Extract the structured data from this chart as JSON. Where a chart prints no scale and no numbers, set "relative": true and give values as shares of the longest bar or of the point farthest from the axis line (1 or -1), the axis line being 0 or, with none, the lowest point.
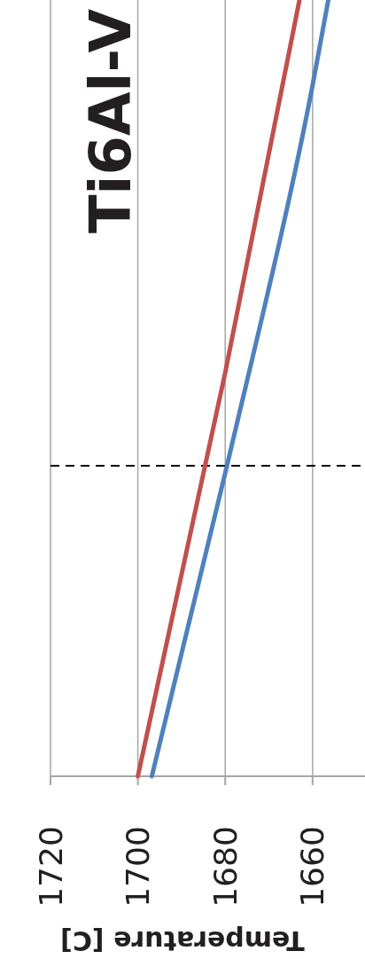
{
  "chart_data": {
    "type": "line",
    "title": "Ti6Al-V",
    "xlabel": "Temperature [C]",
    "relative": true,
    "xlim": [
      1720,
      1648
    ],
    "xticks": [
      1720,
      1700,
      1680,
      1660
    ],
    "grid": "x",
    "tick_labels": "x",
    "line_style": "solid",
    "marker": "none",
    "series": [
      {
        "color": "#c0504d",
        "x": [
          1700,
          1680,
          1663
        ],
        "values": [
          0,
          0.52,
          1
        ]
      },
      {
        "color": "#4f81bd",
        "x": [
          1696.8,
          1679.6,
          1660,
          1656.4
        ],
        "values": [
          0,
          0.4,
          0.89,
          1
        ]
      }
    ],
    "ref_lines": [
      {
        "axis": "y",
        "value": 0.4,
        "color": "#000000",
        "line_style": "dashed"
      }
    ]
  }
}
